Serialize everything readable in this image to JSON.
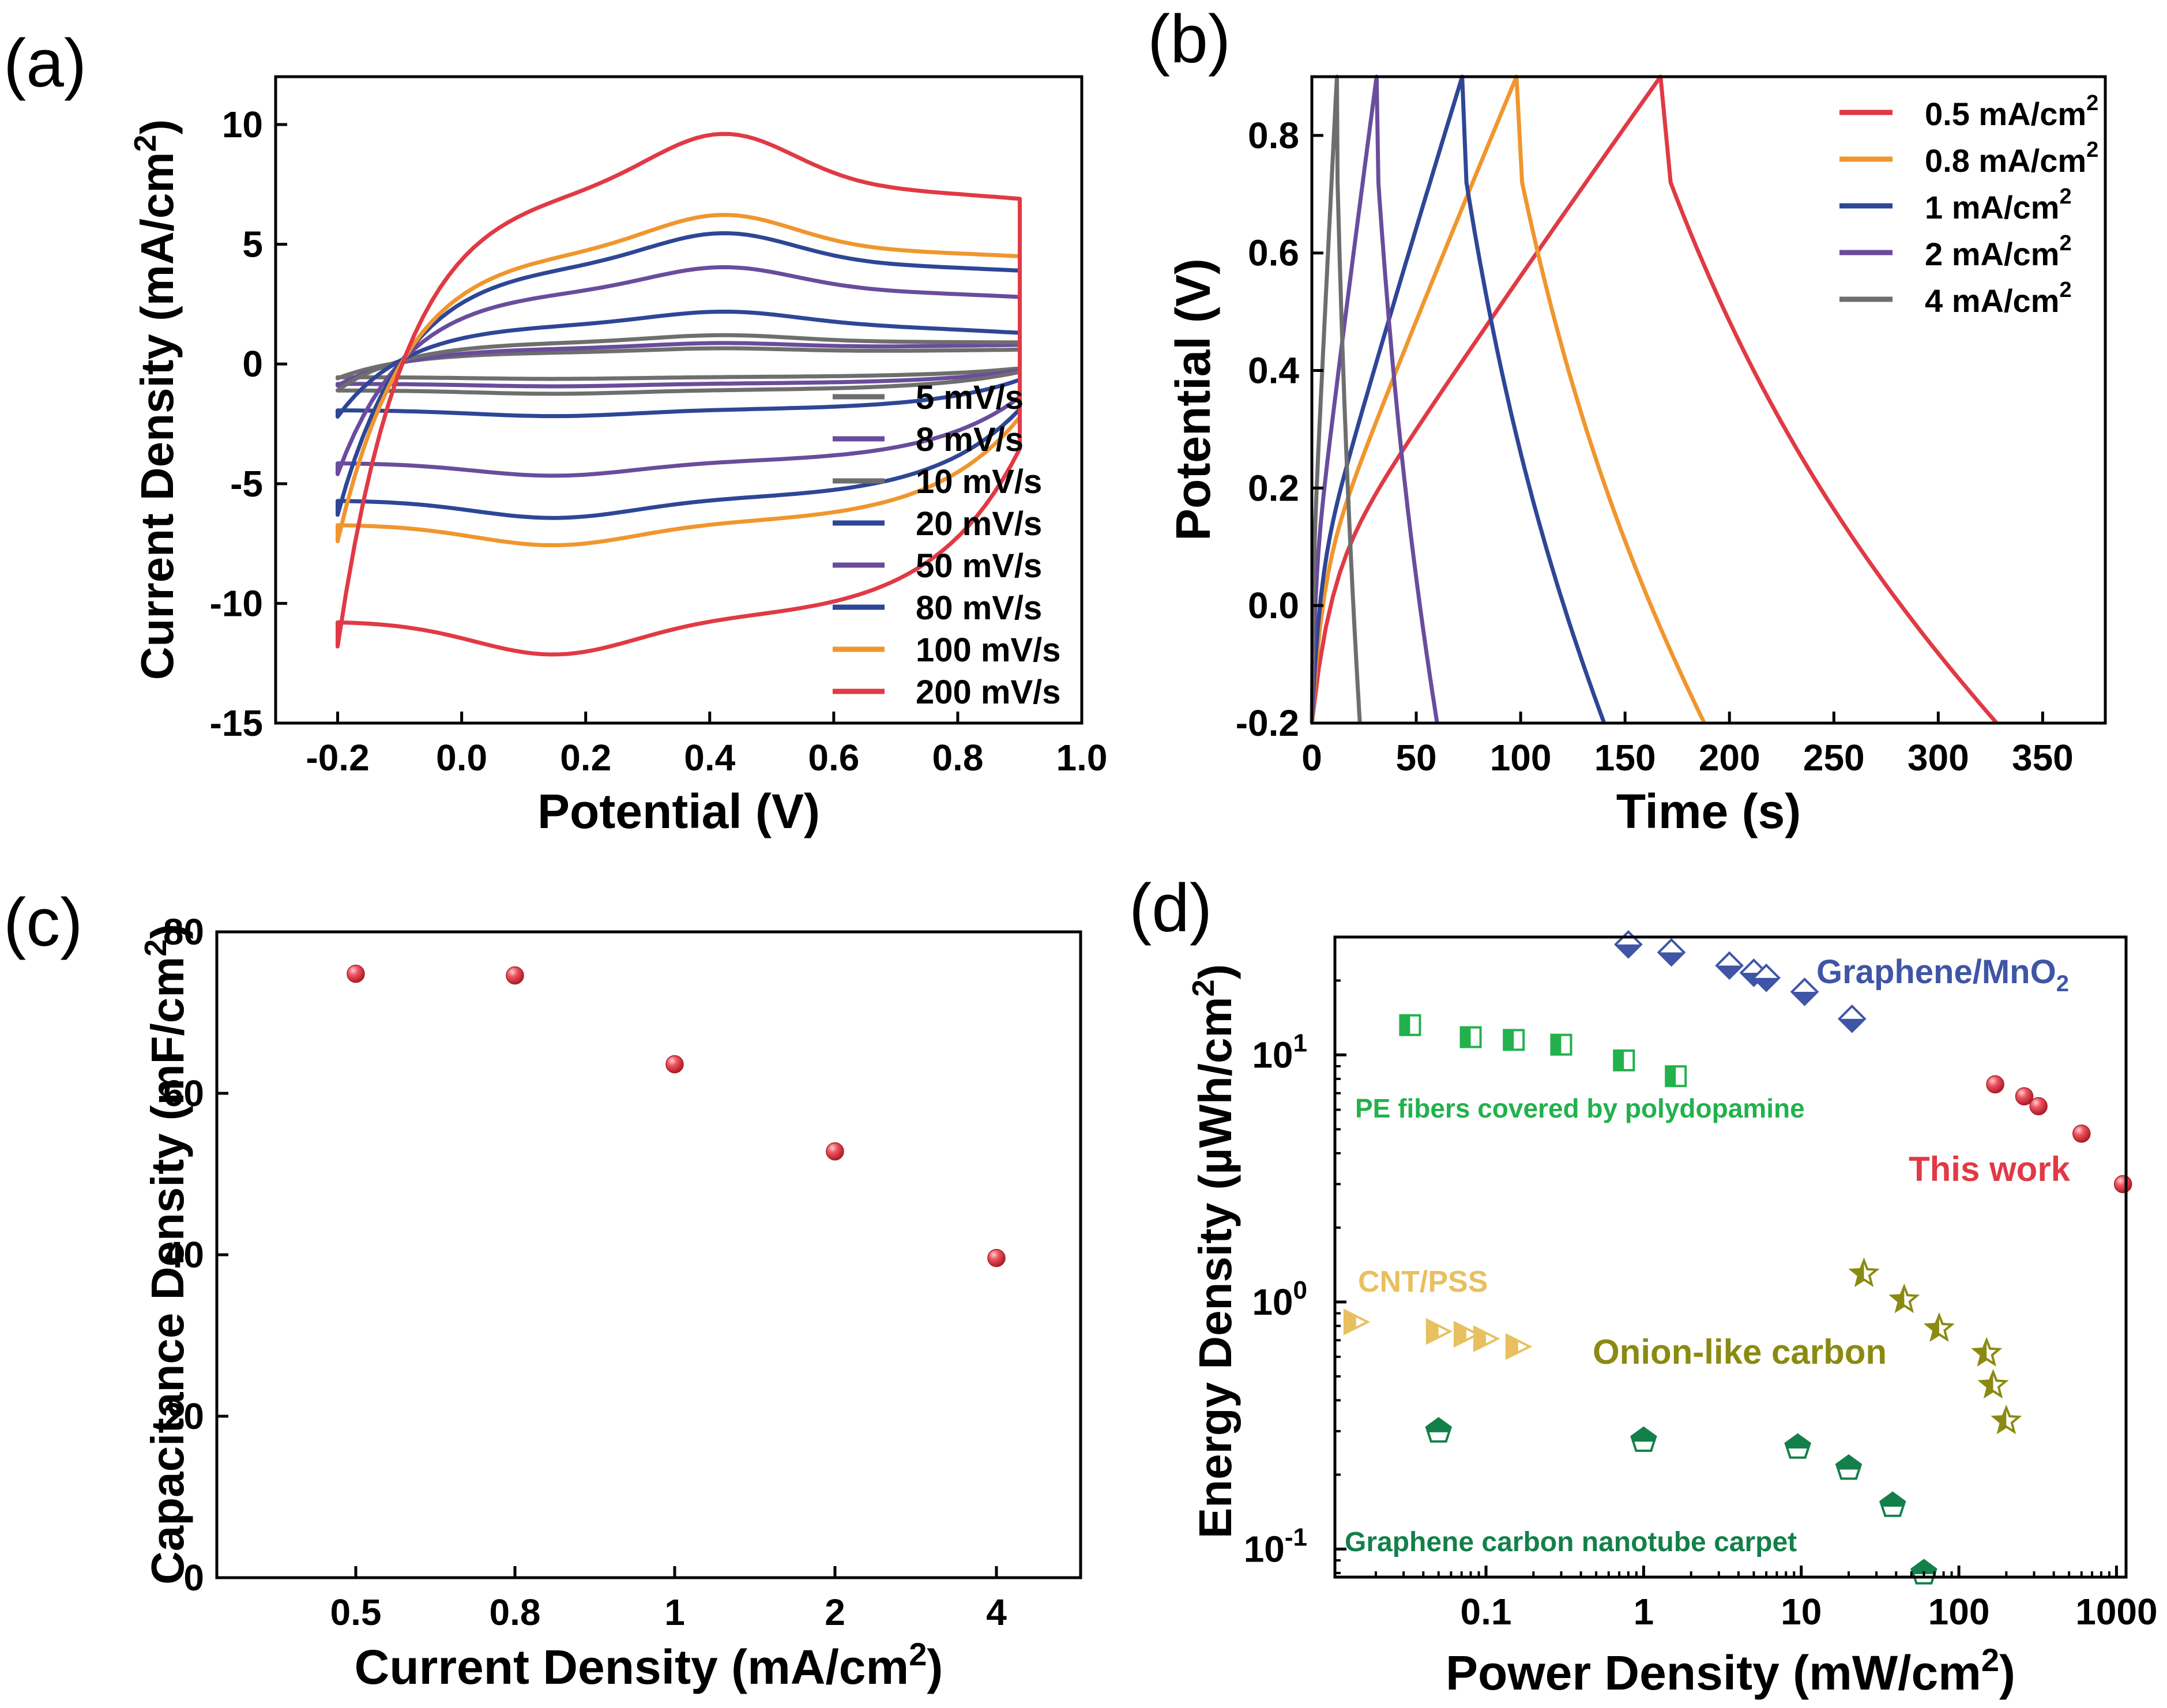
{
  "colors": {
    "red": "#E03A45",
    "orange": "#F0962E",
    "navy": "#2E4696",
    "purple": "#6A4C9C",
    "gray": "#6E6E6E",
    "blue_marker": "#3F55A5",
    "green": "#22B14C",
    "tan": "#E8C060",
    "olive": "#8A8A12",
    "dkgreen": "#13804A"
  },
  "chart_data": [
    {
      "id": "a",
      "panel_label": "(a)",
      "type": "line",
      "xlabel": "Potential (V)",
      "ylabel": "Current Density (mA/cm²)",
      "xlim": [
        -0.3,
        1.0
      ],
      "ylim": [
        -15,
        12
      ],
      "xticks": [
        -0.2,
        0.0,
        0.2,
        0.4,
        0.6,
        0.8,
        1.0
      ],
      "xtick_labels": [
        "-0.2",
        "0.0",
        "0.2",
        "0.4",
        "0.6",
        "0.8",
        "1.0"
      ],
      "yticks": [
        -15,
        -10,
        -5,
        0,
        5,
        10
      ],
      "ytick_labels": [
        "-15",
        "-10",
        "-5",
        "0",
        "5",
        "10"
      ],
      "legend_position": "lower-right",
      "series": [
        {
          "name": "5 mV/s",
          "color": "#6E6E6E",
          "anodic_peak": 0.6,
          "cathodic": -0.6,
          "end_high": 0.6,
          "start_low": -0.6
        },
        {
          "name": "8 mV/s",
          "color": "#6A4C9C",
          "anodic_peak": 0.8,
          "cathodic": -0.9,
          "end_high": 0.8,
          "start_low": -0.9
        },
        {
          "name": "10 mV/s",
          "color": "#6E6E6E",
          "anodic_peak": 1.1,
          "cathodic": -1.2,
          "end_high": 0.9,
          "start_low": -1.1
        },
        {
          "name": "20 mV/s",
          "color": "#2E4696",
          "anodic_peak": 2.0,
          "cathodic": -2.1,
          "end_high": 1.3,
          "start_low": -2.2
        },
        {
          "name": "50 mV/s",
          "color": "#6A4C9C",
          "anodic_peak": 3.7,
          "cathodic": -4.5,
          "end_high": 2.8,
          "start_low": -4.6
        },
        {
          "name": "80 mV/s",
          "color": "#2E4696",
          "anodic_peak": 5.0,
          "cathodic": -6.2,
          "end_high": 3.9,
          "start_low": -6.3
        },
        {
          "name": "100 mV/s",
          "color": "#F0962E",
          "anodic_peak": 5.7,
          "cathodic": -7.3,
          "end_high": 4.5,
          "start_low": -7.4
        },
        {
          "name": "200 mV/s",
          "color": "#E03A45",
          "anodic_peak": 8.8,
          "cathodic": -11.7,
          "end_high": 6.9,
          "start_low": -11.8
        }
      ]
    },
    {
      "id": "b",
      "panel_label": "(b)",
      "type": "line",
      "xlabel": "Time (s)",
      "ylabel": "Potential (V)",
      "xlim": [
        0,
        380
      ],
      "ylim": [
        -0.2,
        0.9
      ],
      "xticks": [
        0,
        50,
        100,
        150,
        200,
        250,
        300,
        350
      ],
      "xtick_labels": [
        "0",
        "50",
        "100",
        "150",
        "200",
        "250",
        "300",
        "350"
      ],
      "yticks": [
        -0.2,
        0.0,
        0.2,
        0.4,
        0.6,
        0.8
      ],
      "ytick_labels": [
        "-0.2",
        "0.0",
        "0.2",
        "0.4",
        "0.6",
        "0.8"
      ],
      "legend_position": "top-right",
      "series": [
        {
          "name": "0.5 mA/cm",
          "sup": "2",
          "color": "#E03A45",
          "t_charge": 167,
          "t_end": 328
        },
        {
          "name": "0.8 mA/cm",
          "sup": "2",
          "color": "#F0962E",
          "t_charge": 98,
          "t_end": 188
        },
        {
          "name": "1 mA/cm",
          "sup": "2",
          "color": "#2E4696",
          "t_charge": 72,
          "t_end": 140
        },
        {
          "name": "2 mA/cm",
          "sup": "2",
          "color": "#6A4C9C",
          "t_charge": 31,
          "t_end": 60
        },
        {
          "name": "4 mA/cm",
          "sup": "2",
          "color": "#6E6E6E",
          "t_charge": 12,
          "t_end": 23
        }
      ]
    },
    {
      "id": "c",
      "panel_label": "(c)",
      "type": "scatter",
      "xlabel": "Current Density (mA/cm",
      "xlabel_sup": "2",
      "xlabel_end": ")",
      "ylabel": "Capacitance Density (mF/cm²)",
      "categories": [
        "0.5",
        "0.8",
        "1",
        "2",
        "4"
      ],
      "values": [
        74.8,
        74.6,
        63.6,
        52.8,
        39.6
      ],
      "ylim": [
        0,
        80
      ],
      "yticks": [
        0,
        20,
        40,
        60,
        80
      ],
      "ytick_labels": [
        "0",
        "20",
        "40",
        "60",
        "80"
      ],
      "color": "#E03A45"
    },
    {
      "id": "d",
      "panel_label": "(d)",
      "type": "scatter",
      "xlabel": "Power Density (mW/cm",
      "xlabel_sup": "2",
      "xlabel_end": ")",
      "ylabel": "Energy Density (µWh/cm²)",
      "xscale": "log",
      "yscale": "log",
      "xlim": [
        0.011,
        1150
      ],
      "ylim": [
        0.077,
        30
      ],
      "xticks": [
        0.1,
        1,
        10,
        100,
        1000
      ],
      "xtick_labels": [
        "0.1",
        "1",
        "10",
        "100",
        "1000"
      ],
      "yticks": [
        0.1,
        1,
        10
      ],
      "ytick_bases": [
        "10",
        "10",
        "10"
      ],
      "ytick_exps": [
        "-1",
        "0",
        "1"
      ],
      "series": [
        {
          "name": "Graphene/MnO",
          "sub": "2",
          "marker": "diamond",
          "color": "#3F55A5",
          "x": [
            0.8,
            1.5,
            3.5,
            5.0,
            6.0,
            10.5,
            21
          ],
          "y": [
            28,
            26,
            23,
            21.5,
            20.5,
            18,
            14
          ]
        },
        {
          "name": "PE fibers covered by polydopamine",
          "marker": "square",
          "color": "#22B14C",
          "x": [
            0.033,
            0.08,
            0.15,
            0.3,
            0.75,
            1.6
          ],
          "y": [
            13.2,
            11.8,
            11.5,
            11,
            9.5,
            8.2
          ]
        },
        {
          "name": "This work",
          "marker": "sphere",
          "color": "#E03A45",
          "x": [
            170,
            260,
            320,
            600,
            1100
          ],
          "y": [
            7.6,
            6.8,
            6.2,
            4.8,
            3.0
          ]
        },
        {
          "name": "CNT/PSS",
          "marker": "triangle-right",
          "color": "#E8C060",
          "x": [
            0.015,
            0.05,
            0.075,
            0.1,
            0.16
          ],
          "y": [
            0.83,
            0.76,
            0.74,
            0.71,
            0.66
          ]
        },
        {
          "name": "Onion-like carbon",
          "marker": "star",
          "color": "#8A8A12",
          "x": [
            25,
            45,
            75,
            150,
            165,
            200
          ],
          "y": [
            1.3,
            1.02,
            0.78,
            0.62,
            0.46,
            0.33
          ]
        },
        {
          "name": "Graphene carbon nanotube carpet",
          "marker": "pentagon",
          "color": "#13804A",
          "x": [
            0.05,
            1.0,
            9.5,
            20,
            38,
            60
          ],
          "y": [
            0.3,
            0.275,
            0.258,
            0.212,
            0.15,
            0.08
          ]
        }
      ]
    }
  ]
}
